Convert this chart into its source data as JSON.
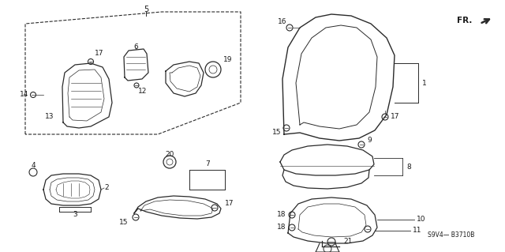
{
  "bg_color": "#ffffff",
  "line_color": "#2a2a2a",
  "text_color": "#1a1a1a",
  "part_number_text": "S9V4— B3710B",
  "fig_width": 6.4,
  "fig_height": 3.19,
  "dpi": 100
}
